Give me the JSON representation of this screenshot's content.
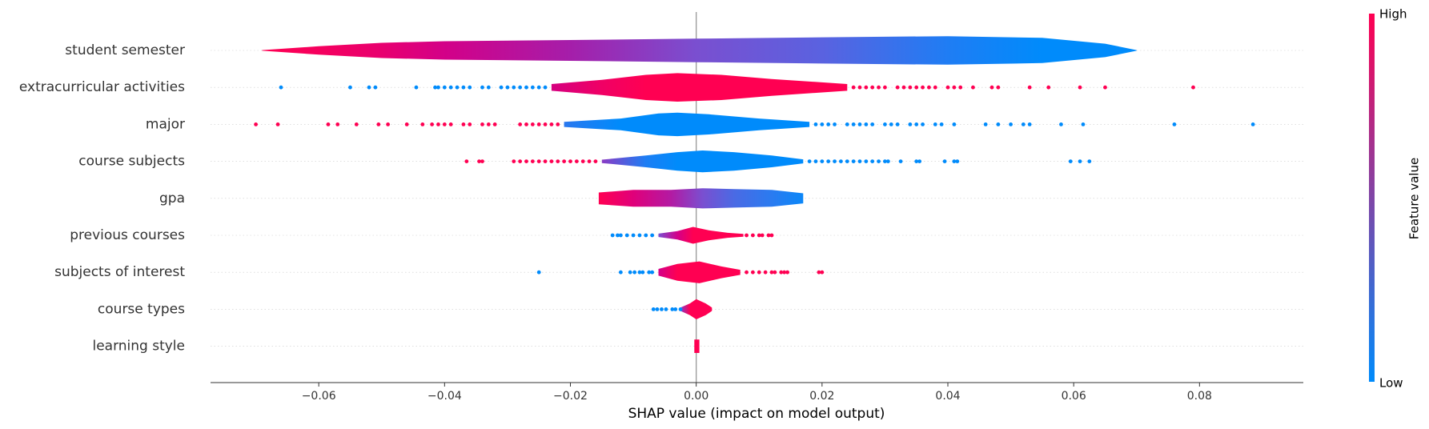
{
  "chart_data": {
    "type": "violin",
    "xlabel": "SHAP value (impact on model output)",
    "xlim": [
      -0.0772,
      0.0965
    ],
    "xticks": [
      {
        "value": -0.06,
        "label": "−0.06"
      },
      {
        "value": -0.04,
        "label": "−0.04"
      },
      {
        "value": -0.02,
        "label": "−0.02"
      },
      {
        "value": 0,
        "label": "0.00"
      },
      0.02,
      0.04,
      0.06,
      0.08
    ],
    "categories": [
      "student semester",
      "extracurricular activities",
      "major",
      "course subjects",
      "gpa",
      "previous courses",
      "subjects of interest",
      "course types",
      "learning style"
    ],
    "colorbar": {
      "label": "Feature value",
      "high": "High",
      "low": "Low",
      "colors": [
        "#ff0052",
        "#008bfb"
      ]
    },
    "series": [
      {
        "name": "student semester",
        "x": [
          -0.069,
          -0.06,
          -0.05,
          -0.04,
          -0.02,
          0,
          0.02,
          0.04,
          0.055,
          0.065,
          0.07
        ],
        "width": [
          0.02,
          0.25,
          0.45,
          0.55,
          0.62,
          0.7,
          0.78,
          0.85,
          0.75,
          0.4,
          0.02
        ],
        "colors": [
          "#ff0052",
          "#f5005e",
          "#e8006f",
          "#d30088",
          "#a51eaa",
          "#7a4fd0",
          "#5a62e0",
          "#1f7df4",
          "#008bfb",
          "#008bfb",
          "#008bfb"
        ],
        "points": []
      },
      {
        "name": "extracurricular activities",
        "x": [
          -0.023,
          -0.015,
          -0.008,
          -0.003,
          0.004,
          0.012,
          0.02,
          0.024
        ],
        "width": [
          0.2,
          0.45,
          0.75,
          0.85,
          0.75,
          0.5,
          0.3,
          0.2
        ],
        "colors": [
          "#d5007f",
          "#f00065",
          "#ff0052",
          "#ff0052",
          "#ff0052",
          "#ff0052",
          "#ff0052",
          "#ff0052"
        ],
        "points": [
          {
            "color": "#008bfb",
            "values": [
              -0.066,
              -0.055,
              -0.052,
              -0.051,
              -0.0445,
              -0.0415,
              -0.041,
              -0.04,
              -0.039,
              -0.038,
              -0.037,
              -0.036,
              -0.034,
              -0.033,
              -0.031,
              -0.03,
              -0.029,
              -0.028,
              -0.027,
              -0.026,
              -0.025,
              -0.024
            ]
          },
          {
            "color": "#ff0052",
            "values": [
              0.025,
              0.026,
              0.027,
              0.028,
              0.029,
              0.03,
              0.032,
              0.033,
              0.034,
              0.035,
              0.036,
              0.037,
              0.038,
              0.04,
              0.041,
              0.042,
              0.044,
              0.047,
              0.048,
              0.053,
              0.056,
              0.061,
              0.065,
              0.079
            ]
          }
        ]
      },
      {
        "name": "major",
        "x": [
          -0.021,
          -0.012,
          -0.006,
          -0.003,
          0.002,
          0.01,
          0.018
        ],
        "width": [
          0.15,
          0.35,
          0.65,
          0.7,
          0.6,
          0.35,
          0.15
        ],
        "colors": [
          "#2a78ef",
          "#008bfb",
          "#008bfb",
          "#008bfb",
          "#008bfb",
          "#008bfb",
          "#008bfb"
        ],
        "points": [
          {
            "color": "#ff0052",
            "values": [
              -0.07,
              -0.0665,
              -0.0585,
              -0.057,
              -0.054,
              -0.0505,
              -0.049,
              -0.046,
              -0.0435,
              -0.042,
              -0.041,
              -0.04,
              -0.039,
              -0.037,
              -0.036,
              -0.034,
              -0.033,
              -0.032,
              -0.028,
              -0.027,
              -0.026,
              -0.025,
              -0.024,
              -0.023,
              -0.022
            ]
          },
          {
            "color": "#008bfb",
            "values": [
              0.019,
              0.02,
              0.021,
              0.022,
              0.024,
              0.025,
              0.026,
              0.027,
              0.028,
              0.03,
              0.031,
              0.032,
              0.034,
              0.035,
              0.036,
              0.038,
              0.039,
              0.041,
              0.046,
              0.048,
              0.05,
              0.052,
              0.053,
              0.058,
              0.0615,
              0.076,
              0.0885
            ]
          }
        ]
      },
      {
        "name": "course subjects",
        "x": [
          -0.015,
          -0.008,
          -0.003,
          0.001,
          0.006,
          0.012,
          0.017
        ],
        "width": [
          0.1,
          0.35,
          0.55,
          0.65,
          0.55,
          0.35,
          0.12
        ],
        "colors": [
          "#8a3bc4",
          "#1d7ef4",
          "#008bfb",
          "#008bfb",
          "#008bfb",
          "#008bfb",
          "#008bfb"
        ],
        "points": [
          {
            "color": "#ff0052",
            "values": [
              -0.0365,
              -0.0345,
              -0.034,
              -0.029,
              -0.028,
              -0.027,
              -0.026,
              -0.025,
              -0.024,
              -0.023,
              -0.022,
              -0.021,
              -0.02,
              -0.019,
              -0.018,
              -0.017,
              -0.016
            ]
          },
          {
            "color": "#008bfb",
            "values": [
              0.018,
              0.019,
              0.02,
              0.021,
              0.022,
              0.023,
              0.024,
              0.025,
              0.026,
              0.027,
              0.028,
              0.029,
              0.03,
              0.0305,
              0.0325,
              0.035,
              0.0355,
              0.0395,
              0.041,
              0.0415,
              0.0595,
              0.061,
              0.0625
            ]
          }
        ]
      },
      {
        "name": "gpa",
        "x": [
          -0.0155,
          -0.01,
          -0.004,
          0.001,
          0.006,
          0.012,
          0.017
        ],
        "width": [
          0.35,
          0.5,
          0.5,
          0.6,
          0.55,
          0.5,
          0.3
        ],
        "colors": [
          "#ff0052",
          "#e0007a",
          "#b31aa3",
          "#7a4fd0",
          "#4a6ae4",
          "#2a7bf0",
          "#0b87f8"
        ],
        "points": []
      },
      {
        "name": "previous courses",
        "x": [
          -0.006,
          -0.003,
          -0.0005,
          0.002,
          0.005,
          0.0075
        ],
        "width": [
          0.1,
          0.25,
          0.5,
          0.3,
          0.15,
          0.08
        ],
        "colors": [
          "#7a4fd0",
          "#d3008a",
          "#ff0052",
          "#ff0052",
          "#ff0052",
          "#ff0052"
        ],
        "points": [
          {
            "color": "#008bfb",
            "values": [
              -0.0133,
              -0.0125,
              -0.012,
              -0.011,
              -0.01,
              -0.009,
              -0.008,
              -0.007
            ]
          },
          {
            "color": "#ff0052",
            "values": [
              0.008,
              0.009,
              0.01,
              0.0105,
              0.0115,
              0.012
            ]
          }
        ]
      },
      {
        "name": "subjects of interest",
        "x": [
          -0.006,
          -0.003,
          0.0005,
          0.004,
          0.007
        ],
        "width": [
          0.2,
          0.5,
          0.65,
          0.35,
          0.15
        ],
        "colors": [
          "#d3008a",
          "#ff0052",
          "#ff0052",
          "#ff0052",
          "#ff0052"
        ],
        "points": [
          {
            "color": "#008bfb",
            "values": [
              -0.025,
              -0.012,
              -0.0105,
              -0.0098,
              -0.009,
              -0.0085,
              -0.0075,
              -0.007
            ]
          },
          {
            "color": "#ff0052",
            "values": [
              0.008,
              0.009,
              0.01,
              0.011,
              0.012,
              0.0125,
              0.0135,
              0.014,
              0.0145,
              0.0195,
              0.02
            ]
          }
        ]
      },
      {
        "name": "course types",
        "x": [
          -0.0025,
          -0.001,
          0,
          0.0015,
          0.0025
        ],
        "width": [
          0.1,
          0.35,
          0.6,
          0.35,
          0.1
        ],
        "colors": [
          "#8a3bc4",
          "#ff0052",
          "#ff0052",
          "#ff0052",
          "#ff0052"
        ],
        "points": [
          {
            "color": "#008bfb",
            "values": [
              -0.0068,
              -0.0062,
              -0.0055,
              -0.0048,
              -0.0038,
              -0.0033,
              -0.0025
            ]
          }
        ]
      },
      {
        "name": "learning style",
        "x": [
          -0.0003,
          0.0005
        ],
        "width": [
          0.4,
          0.4
        ],
        "colors": [
          "#ff0052",
          "#ff0052"
        ],
        "points": []
      }
    ]
  }
}
